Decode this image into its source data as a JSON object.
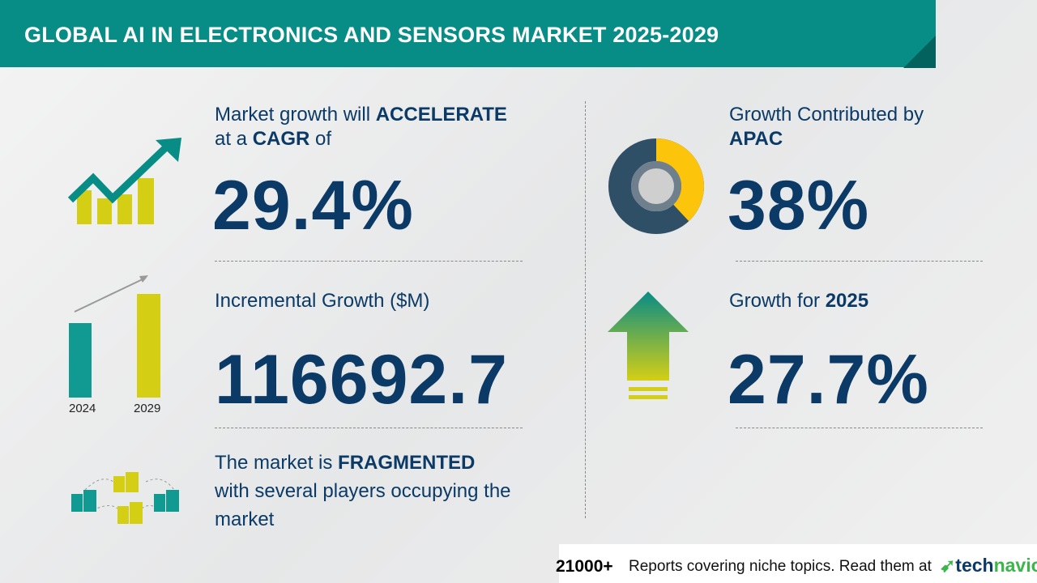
{
  "header": {
    "title": "GLOBAL AI IN ELECTRONICS AND SENSORS MARKET 2025-2029"
  },
  "cagr": {
    "line1_pre": "Market growth will ",
    "line1_bold": "ACCELERATE",
    "line2_pre": "at a ",
    "line2_bold": "CAGR",
    "line2_post": " of",
    "value": "29.4%"
  },
  "incremental": {
    "label": "Incremental Growth ($M)",
    "value": "116692.7",
    "years": [
      "2024",
      "2029"
    ]
  },
  "fragmented": {
    "pre": "The market is ",
    "bold": "FRAGMENTED",
    "rest1": "with several players occupying the",
    "rest2": "market"
  },
  "region": {
    "label": "Growth Contributed by",
    "bold": "APAC",
    "value": "38%",
    "share": 0.38
  },
  "yoy": {
    "label": "Growth for ",
    "bold": "2025",
    "value": "27.7%"
  },
  "footer": {
    "count": "21000+",
    "text": "Reports covering niche topics. Read them at",
    "logo_a": "tech",
    "logo_b": "navio"
  },
  "colors": {
    "teal": "#078c86",
    "navy": "#0b3a67",
    "yellow": "#d4cf14",
    "green": "#3cb54a"
  }
}
